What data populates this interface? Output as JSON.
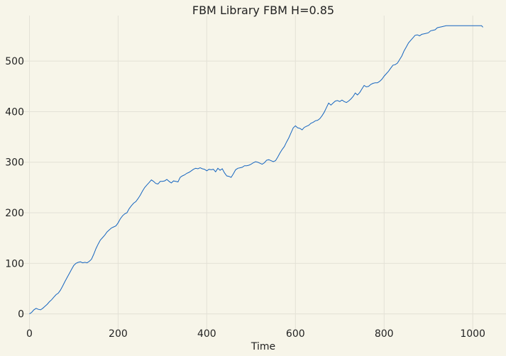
{
  "chart_data": {
    "type": "line",
    "title": "FBM Library FBM H=0.85",
    "xlabel": "Time",
    "ylabel": "",
    "xlim": [
      -20,
      1075
    ],
    "ylim": [
      -30,
      590
    ],
    "xticks": [
      0,
      200,
      400,
      600,
      800,
      1000
    ],
    "yticks": [
      0,
      100,
      200,
      300,
      400,
      500
    ],
    "grid": true,
    "legend": "none",
    "colors": {
      "line": "#1565c0",
      "background": "#f7f5e9",
      "grid": "#e3e1d6"
    },
    "series": [
      {
        "x": [
          0,
          5,
          10,
          15,
          20,
          25,
          30,
          35,
          40,
          45,
          50,
          55,
          60,
          65,
          70,
          75,
          80,
          85,
          90,
          95,
          100,
          105,
          110,
          115,
          120,
          125,
          130,
          135,
          140,
          145,
          150,
          155,
          160,
          165,
          170,
          175,
          180,
          185,
          190,
          195,
          200,
          205,
          210,
          215,
          220,
          225,
          230,
          235,
          240,
          245,
          250,
          255,
          260,
          265,
          270,
          275,
          280,
          285,
          290,
          295,
          300,
          305,
          310,
          315,
          320,
          325,
          330,
          335,
          340,
          345,
          350,
          355,
          360,
          365,
          370,
          375,
          380,
          385,
          390,
          395,
          400,
          405,
          410,
          415,
          420,
          425,
          430,
          435,
          440,
          445,
          450,
          455,
          460,
          465,
          470,
          475,
          480,
          485,
          490,
          495,
          500,
          505,
          510,
          515,
          520,
          525,
          530,
          535,
          540,
          545,
          550,
          555,
          560,
          565,
          570,
          575,
          580,
          585,
          590,
          595,
          600,
          605,
          610,
          615,
          620,
          625,
          630,
          635,
          640,
          645,
          650,
          655,
          660,
          665,
          670,
          675,
          680,
          685,
          690,
          695,
          700,
          705,
          710,
          715,
          720,
          725,
          730,
          735,
          740,
          745,
          750,
          755,
          760,
          765,
          770,
          775,
          780,
          785,
          790,
          795,
          800,
          805,
          810,
          815,
          820,
          825,
          830,
          835,
          840,
          845,
          850,
          855,
          860,
          865,
          870,
          875,
          880,
          885,
          890,
          895,
          900,
          905,
          910,
          915,
          920,
          925,
          930,
          935,
          940,
          945,
          950,
          955,
          960,
          965,
          970,
          975,
          980,
          985,
          990,
          995,
          1000,
          1005,
          1010,
          1015,
          1020,
          1023
        ],
        "y": [
          0,
          3,
          8,
          11,
          9,
          8,
          11,
          15,
          19,
          24,
          28,
          33,
          38,
          41,
          47,
          55,
          64,
          72,
          80,
          88,
          96,
          100,
          102,
          103,
          101,
          102,
          101,
          104,
          108,
          118,
          129,
          138,
          146,
          151,
          156,
          162,
          166,
          170,
          172,
          174,
          180,
          188,
          194,
          198,
          200,
          208,
          214,
          219,
          222,
          228,
          235,
          243,
          250,
          255,
          260,
          265,
          262,
          258,
          257,
          262,
          262,
          263,
          266,
          262,
          259,
          263,
          262,
          261,
          270,
          273,
          275,
          278,
          280,
          283,
          286,
          288,
          287,
          289,
          287,
          286,
          283,
          286,
          285,
          286,
          281,
          288,
          284,
          287,
          279,
          273,
          272,
          270,
          277,
          285,
          288,
          289,
          290,
          293,
          293,
          294,
          296,
          299,
          301,
          300,
          298,
          296,
          299,
          304,
          305,
          303,
          301,
          303,
          310,
          318,
          325,
          331,
          340,
          348,
          358,
          368,
          372,
          368,
          367,
          364,
          369,
          371,
          373,
          377,
          379,
          382,
          383,
          386,
          392,
          399,
          408,
          417,
          413,
          417,
          421,
          422,
          420,
          423,
          420,
          418,
          421,
          425,
          430,
          437,
          433,
          438,
          445,
          452,
          449,
          450,
          454,
          456,
          457,
          457,
          460,
          464,
          470,
          475,
          480,
          486,
          492,
          493,
          496,
          503,
          510,
          520,
          528,
          536,
          541,
          546,
          551,
          552,
          550,
          553,
          554,
          555,
          556,
          560,
          561,
          562,
          566,
          567,
          568,
          569,
          570,
          570,
          570,
          570,
          570,
          570,
          570,
          570,
          570,
          570,
          570,
          570,
          570,
          570,
          570,
          570,
          570,
          567
        ]
      }
    ]
  }
}
